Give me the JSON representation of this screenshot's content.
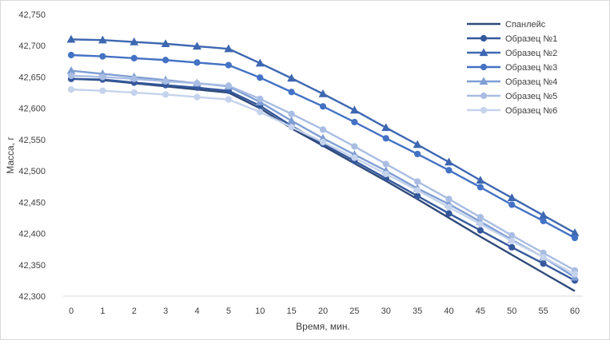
{
  "chart_data": {
    "type": "line",
    "title": "",
    "xlabel": "Время, мин.",
    "ylabel": "Масса, г",
    "categories": [
      "0",
      "1",
      "2",
      "3",
      "4",
      "5",
      "10",
      "15",
      "20",
      "25",
      "30",
      "35",
      "40",
      "45",
      "50",
      "55",
      "60"
    ],
    "y_tick_labels": [
      "42,300",
      "42,350",
      "42,400",
      "42,450",
      "42,500",
      "42,550",
      "42,600",
      "42,650",
      "42,700",
      "42,750"
    ],
    "ylim": [
      42.3,
      42.75
    ],
    "grid": "none",
    "legend_position": "top-right",
    "series": [
      {
        "name": "Спанлейс",
        "color": "#2f4a7a",
        "marker": "none",
        "values": [
          42.647,
          42.645,
          42.64,
          42.635,
          42.63,
          42.625,
          42.6,
          42.568,
          42.54,
          42.512,
          42.484,
          42.455,
          42.425,
          42.395,
          42.366,
          42.337,
          42.308
        ]
      },
      {
        "name": "Образец №1",
        "color": "#34589c",
        "marker": "circle",
        "values": [
          42.647,
          42.646,
          42.641,
          42.637,
          42.633,
          42.628,
          42.604,
          42.572,
          42.543,
          42.516,
          42.488,
          42.46,
          42.432,
          42.405,
          42.378,
          42.352,
          42.325
        ]
      },
      {
        "name": "Образец №2",
        "color": "#3e67b1",
        "marker": "triangle",
        "values": [
          42.71,
          42.709,
          42.706,
          42.703,
          42.699,
          42.695,
          42.672,
          42.648,
          42.623,
          42.597,
          42.569,
          42.542,
          42.514,
          42.485,
          42.457,
          42.429,
          42.401
        ]
      },
      {
        "name": "Образец №3",
        "color": "#4472c4",
        "marker": "circle",
        "values": [
          42.685,
          42.683,
          42.68,
          42.677,
          42.673,
          42.669,
          42.649,
          42.626,
          42.603,
          42.578,
          42.552,
          42.527,
          42.501,
          42.474,
          42.446,
          42.42,
          42.393
        ]
      },
      {
        "name": "Образец №4",
        "color": "#7f9ed4",
        "marker": "triangle",
        "values": [
          42.66,
          42.655,
          42.65,
          42.645,
          42.64,
          42.635,
          42.61,
          42.58,
          42.552,
          42.526,
          42.5,
          42.472,
          42.447,
          42.419,
          42.39,
          42.362,
          42.33
        ]
      },
      {
        "name": "Образец №5",
        "color": "#a9bde3",
        "marker": "circle",
        "values": [
          42.652,
          42.65,
          42.647,
          42.643,
          42.64,
          42.636,
          42.615,
          42.591,
          42.566,
          42.539,
          42.511,
          42.483,
          42.455,
          42.426,
          42.397,
          42.369,
          42.341
        ]
      },
      {
        "name": "Образец №6",
        "color": "#c5d3ec",
        "marker": "circle",
        "values": [
          42.63,
          42.628,
          42.625,
          42.622,
          42.618,
          42.614,
          42.594,
          42.57,
          42.546,
          42.521,
          42.495,
          42.469,
          42.442,
          42.415,
          42.388,
          42.362,
          42.335
        ]
      }
    ]
  }
}
